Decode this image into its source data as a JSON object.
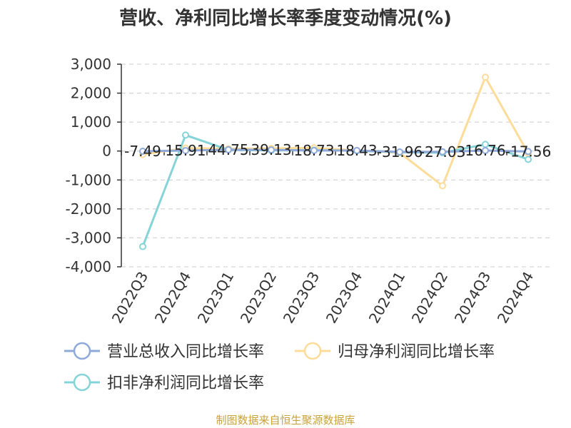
{
  "chart_data": {
    "type": "line",
    "title": "营收、净利同比增长率季度变动情况(%)",
    "categories": [
      "2022Q3",
      "2022Q4",
      "2023Q1",
      "2023Q2",
      "2023Q3",
      "2023Q4",
      "2024Q1",
      "2024Q2",
      "2024Q3",
      "2024Q4"
    ],
    "ylim": [
      -4000,
      3000
    ],
    "yticks": [
      3000,
      2000,
      1000,
      0,
      -1000,
      -2000,
      -3000,
      -4000
    ],
    "ytick_labels": [
      "3,000",
      "2,000",
      "1,000",
      "0",
      "-1,000",
      "-2,000",
      "-3,000",
      "-4,000"
    ],
    "grid": true,
    "legend_position": "bottom",
    "series": [
      {
        "name": "营业总收入同比增长率",
        "color": "#8fa9d9",
        "values": [
          -7.49,
          15.91,
          44.75,
          39.13,
          18.73,
          18.43,
          -31.96,
          -27.03,
          16.76,
          -17.56
        ],
        "labels": [
          "-7.49",
          "15.91",
          "44.75",
          "39.13",
          "18.73",
          "18.43",
          "-31.96",
          "-27.03",
          "16.76",
          "-17.56"
        ]
      },
      {
        "name": "归母净利润同比增长率",
        "color": "#fddc9a",
        "values": [
          -120,
          100,
          80,
          90,
          110,
          20,
          -60,
          -1200,
          2550,
          -80
        ]
      },
      {
        "name": "扣非净利润同比增长率",
        "color": "#86d4d8",
        "values": [
          -3300,
          550,
          40,
          20,
          30,
          10,
          -40,
          -60,
          230,
          -290
        ]
      }
    ]
  },
  "source": "制图数据来自恒生聚源数据库"
}
